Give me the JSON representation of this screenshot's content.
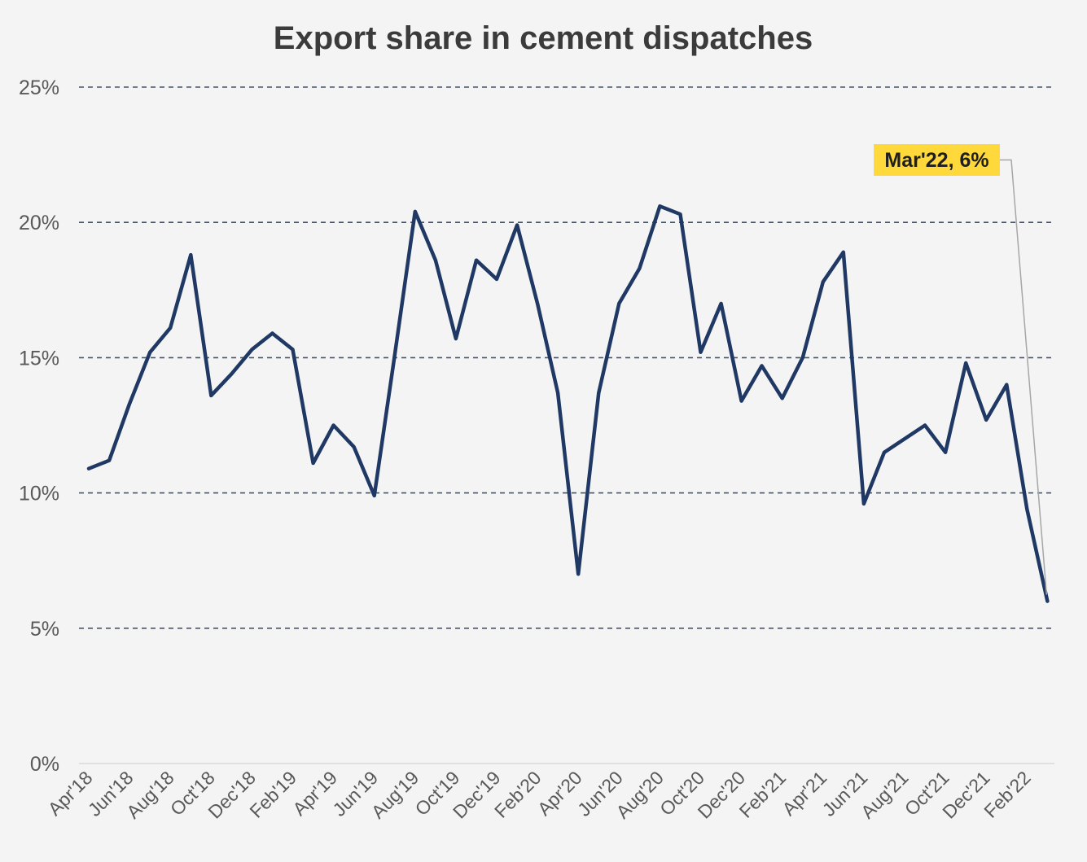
{
  "chart_data": {
    "type": "line",
    "title": "Export share in cement dispatches",
    "xlabel": "",
    "ylabel": "",
    "ylim": [
      0,
      25
    ],
    "yticks": [
      0,
      5,
      10,
      15,
      20,
      25
    ],
    "ytick_labels": [
      "0%",
      "5%",
      "10%",
      "15%",
      "20%",
      "25%"
    ],
    "grid": "horizontal dashed",
    "legend": "none",
    "line_color": "#1f3864",
    "categories": [
      "Apr'18",
      "May'18",
      "Jun'18",
      "Jul'18",
      "Aug'18",
      "Sep'18",
      "Oct'18",
      "Nov'18",
      "Dec'18",
      "Jan'19",
      "Feb'19",
      "Mar'19",
      "Apr'19",
      "May'19",
      "Jun'19",
      "Jul'19",
      "Aug'19",
      "Sep'19",
      "Oct'19",
      "Nov'19",
      "Dec'19",
      "Jan'20",
      "Feb'20",
      "Mar'20",
      "Apr'20",
      "May'20",
      "Jun'20",
      "Jul'20",
      "Aug'20",
      "Sep'20",
      "Oct'20",
      "Nov'20",
      "Dec'20",
      "Jan'21",
      "Feb'21",
      "Mar'21",
      "Apr'21",
      "May'21",
      "Jun'21",
      "Jul'21",
      "Aug'21",
      "Sep'21",
      "Oct'21",
      "Nov'21",
      "Dec'21",
      "Jan'22",
      "Feb'22",
      "Mar'22"
    ],
    "x_tick_labels": [
      "Apr'18",
      "Jun'18",
      "Aug'18",
      "Oct'18",
      "Dec'18",
      "Feb'19",
      "Apr'19",
      "Jun'19",
      "Aug'19",
      "Oct'19",
      "Dec'19",
      "Feb'20",
      "Apr'20",
      "Jun'20",
      "Aug'20",
      "Oct'20",
      "Dec'20",
      "Feb'21",
      "Apr'21",
      "Jun'21",
      "Aug'21",
      "Oct'21",
      "Dec'21",
      "Feb'22"
    ],
    "series": [
      {
        "values": [
          10.9,
          11.2,
          13.3,
          15.2,
          16.1,
          18.8,
          13.6,
          14.4,
          15.3,
          15.9,
          15.3,
          11.1,
          12.5,
          11.7,
          9.9,
          15.1,
          20.4,
          18.6,
          15.7,
          18.6,
          17.9,
          19.9,
          17.0,
          13.7,
          7.0,
          13.7,
          17.0,
          18.3,
          20.6,
          20.3,
          15.2,
          17.0,
          13.4,
          14.7,
          13.5,
          15.0,
          17.8,
          18.9,
          9.6,
          11.5,
          12.0,
          12.5,
          11.5,
          14.8,
          12.7,
          14.0,
          9.4,
          6.0
        ]
      }
    ],
    "annotation": {
      "text": "Mar'22, 6%",
      "category": "Mar'22",
      "value": 6.0,
      "background": "#ffd93b"
    }
  }
}
